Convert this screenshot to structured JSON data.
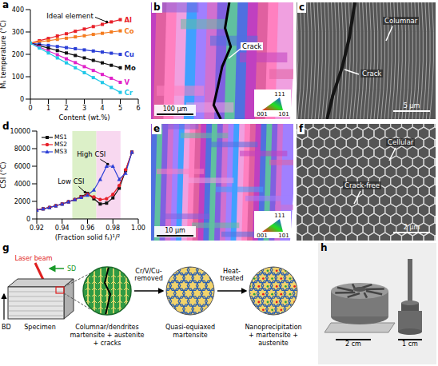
{
  "chart_data": [
    {
      "type": "line",
      "panel": "a",
      "x_label": "Content (wt.%)",
      "y_label": "Mₛ temperature (°C)",
      "marker": "square",
      "x": [
        0,
        0.5,
        1,
        1.5,
        2,
        2.5,
        3,
        3.5,
        4,
        4.5,
        5
      ],
      "xlim": [
        0,
        6
      ],
      "xticks": [
        0,
        1,
        2,
        3,
        4,
        5,
        6
      ],
      "ylim": [
        0,
        400
      ],
      "yticks": [
        0,
        100,
        200,
        300,
        400
      ],
      "series": [
        {
          "name": "Al",
          "color": "#e8202a",
          "values": [
            250,
            261,
            271,
            282,
            292,
            303,
            313,
            324,
            334,
            345,
            355
          ]
        },
        {
          "name": "Co",
          "color": "#f47c20",
          "values": [
            250,
            256,
            261,
            267,
            272,
            278,
            283,
            289,
            294,
            300,
            305
          ]
        },
        {
          "name": "Cu",
          "color": "#2b3fd6",
          "values": [
            250,
            245,
            240,
            235,
            230,
            225,
            220,
            215,
            210,
            205,
            200
          ]
        },
        {
          "name": "Mo",
          "color": "#111111",
          "values": [
            250,
            239,
            228,
            217,
            206,
            195,
            184,
            173,
            162,
            151,
            140
          ]
        },
        {
          "name": "V",
          "color": "#e020c8",
          "values": [
            250,
            233,
            215,
            198,
            180,
            163,
            145,
            128,
            110,
            93,
            75
          ]
        },
        {
          "name": "Cr",
          "color": "#20c8e8",
          "values": [
            250,
            228,
            206,
            184,
            162,
            140,
            118,
            96,
            74,
            52,
            30
          ]
        }
      ],
      "annotations": [
        {
          "text": "Ideal element",
          "x": 2.2,
          "y": 372,
          "arrow": [
            [
              3.6,
              366
            ],
            [
              4.25,
              345
            ]
          ]
        }
      ]
    },
    {
      "type": "line",
      "panel": "d",
      "x_label": "(Fraction solid fₛ)¹/²",
      "y_label": "CSI (°C)",
      "legend": "upper left",
      "x": [
        0.92,
        0.925,
        0.93,
        0.935,
        0.94,
        0.945,
        0.95,
        0.955,
        0.96,
        0.965,
        0.97,
        0.975,
        0.98,
        0.985,
        0.99,
        0.995
      ],
      "xlim": [
        0.92,
        1
      ],
      "xticks": [
        0.92,
        0.94,
        0.96,
        0.98,
        {
          "value": 1,
          "label": "1.00"
        }
      ],
      "ylim": [
        0,
        10000
      ],
      "yticks": [
        0,
        2000,
        4000,
        6000,
        8000,
        10000
      ],
      "series": [
        {
          "name": "MS1",
          "color": "#111111",
          "marker": "square",
          "values": [
            1000,
            1150,
            1300,
            1500,
            1700,
            1950,
            2200,
            2550,
            2900,
            2300,
            1700,
            1800,
            2400,
            3500,
            5500,
            7600
          ]
        },
        {
          "name": "MS2",
          "color": "#e8202a",
          "marker": "circle",
          "values": [
            1000,
            1150,
            1300,
            1500,
            1700,
            1950,
            2200,
            2500,
            2800,
            2500,
            2200,
            2300,
            2800,
            3800,
            5600,
            7600
          ]
        },
        {
          "name": "MS3",
          "color": "#2b3fd6",
          "marker": "triangle",
          "values": [
            1000,
            1150,
            1300,
            1500,
            1700,
            1950,
            2200,
            2450,
            2700,
            3300,
            4500,
            6000,
            6000,
            4500,
            5200,
            7600
          ]
        }
      ],
      "regions": [
        {
          "x1": 0.948,
          "x2": 0.967,
          "color": "#dcf0c8"
        },
        {
          "x1": 0.967,
          "x2": 0.986,
          "color": "#f8d8f0"
        }
      ],
      "annotations": [
        {
          "text": "Low CSI",
          "x": 0.947,
          "y": 4300,
          "arrow": [
            [
              0.953,
              3700
            ],
            [
              0.958,
              3050
            ]
          ]
        },
        {
          "text": "High CSI",
          "x": 0.963,
          "y": 7400,
          "arrow": [
            [
              0.97,
              6800
            ],
            [
              0.976,
              6250
            ]
          ]
        }
      ]
    }
  ],
  "images": {
    "b": {
      "labels": [
        "Crack"
      ],
      "scale_bar": "100 μm",
      "ipf": [
        "111",
        "001",
        "101"
      ]
    },
    "c": {
      "labels": [
        "Columnar",
        "Crack"
      ],
      "scale_bar": "5 μm"
    },
    "e": {
      "scale_bar": "10 μm",
      "ipf": [
        "111",
        "001",
        "101"
      ]
    },
    "f": {
      "labels": [
        "Cellular",
        "Crack-free"
      ],
      "scale_bar": "2 μm"
    },
    "h": {
      "scale_bars": [
        "2 cm",
        "1 cm"
      ]
    }
  },
  "diagram": {
    "panel": "g",
    "laser": "Laser beam",
    "sd": "SD",
    "bd": "BD",
    "specimen": "Specimen",
    "stages": [
      [
        "Columnar/dendrites",
        "martensite + austenite",
        "+ cracks"
      ],
      [
        "Quasi-equiaxed",
        "martensite"
      ],
      [
        "Nanoprecipitation",
        "+ martensite +",
        "austenite"
      ]
    ],
    "steps": [
      [
        "Cr/V/Cu-",
        "removed"
      ],
      [
        "Heat-",
        "treated"
      ]
    ]
  }
}
